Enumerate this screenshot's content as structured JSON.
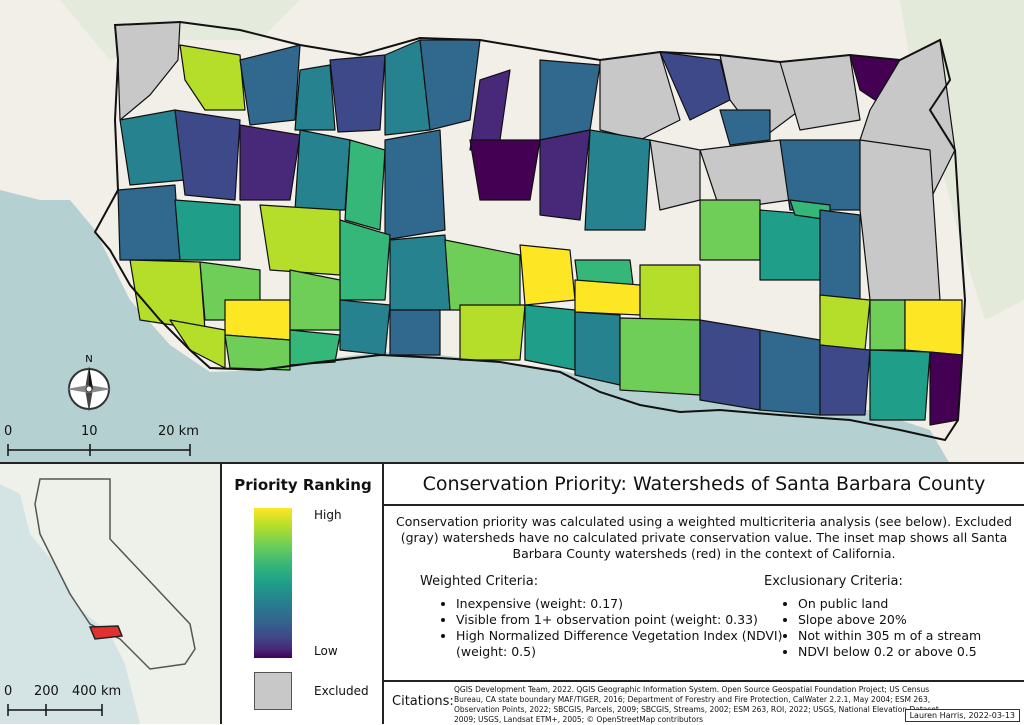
{
  "map": {
    "scale_labels": [
      "0",
      "10",
      "20 km"
    ],
    "north_label": "N",
    "colors": {
      "ocean": "#b5d0d0",
      "land": "#f2efe9",
      "excluded": "#c8c8c8",
      "high": "#fde725",
      "low": "#440154"
    }
  },
  "inset": {
    "scale_labels": [
      "0",
      "200",
      "400 km"
    ],
    "highlight_color": "#e03030"
  },
  "legend": {
    "title": "Priority Ranking",
    "high_label": "High",
    "low_label": "Low",
    "excluded_label": "Excluded"
  },
  "info": {
    "title": "Conservation Priority: Watersheds of Santa Barbara County",
    "description": "Conservation priority was calculated using a weighted multicriteria analysis (see below). Excluded (gray) watersheds have no calculated private conservation value. The inset map shows all Santa Barbara County watersheds (red) in the context of California.",
    "weighted_heading": "Weighted Criteria:",
    "weighted_items": [
      "Inexpensive (weight: 0.17)",
      "Visible from 1+ observation point (weight: 0.33)",
      "High Normalized Difference Vegetation Index (NDVI) (weight: 0.5)"
    ],
    "exclusion_heading": "Exclusionary Criteria:",
    "exclusion_items": [
      "On public land",
      "Slope above 20%",
      "Not within 305 m of a stream",
      "NDVI below 0.2 or above 0.5"
    ],
    "citations_label": "Citations:",
    "citations_text": "QGIS Development Team, 2022. QGIS Geographic Information System. Open Source Geospatial Foundation Project; US Census Bureau, CA state boundary MAF/TIGER, 2016; Department of Forestry and Fire Protection, CalWater 2.2.1, May 2004; ESM 263, Observation Points, 2022; SBCGIS, Parcels, 2009; SBCGIS, Streams, 2002; ESM 263, ROI, 2022; USGS, National Elevation Dataset, 2009; USGS, Landsat ETM+, 2005; © OpenStreetMap contributors",
    "author": "Lauren Harris, 2022-03-13"
  }
}
